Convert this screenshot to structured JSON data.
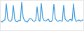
{
  "chart_data": {
    "type": "line",
    "x": [
      0,
      1,
      2,
      3,
      4,
      5,
      6,
      7,
      8,
      9,
      10,
      11,
      12,
      13,
      14,
      15,
      16,
      17,
      18,
      19,
      20,
      21,
      22,
      23,
      24,
      25,
      26,
      27,
      28,
      29,
      30,
      31,
      32,
      33,
      34,
      35,
      36,
      37,
      38,
      39,
      40,
      41,
      42,
      43,
      44,
      45,
      46,
      47,
      48,
      49,
      50,
      51,
      52,
      53,
      54,
      55,
      56,
      57,
      58,
      59
    ],
    "values": [
      30,
      28,
      33,
      35,
      90,
      40,
      32,
      30,
      36,
      85,
      38,
      30,
      29,
      34,
      32,
      95,
      45,
      33,
      30,
      28,
      35,
      40,
      38,
      32,
      30,
      34,
      80,
      36,
      30,
      92,
      42,
      33,
      31,
      35,
      38,
      30,
      29,
      36,
      88,
      40,
      33,
      30,
      34,
      32,
      31,
      86,
      38,
      33,
      30,
      35,
      37,
      32,
      90,
      40,
      30,
      33,
      35,
      31,
      34,
      36
    ],
    "color": "#3b9ad9",
    "xlim": [
      0,
      59
    ],
    "ylim": [
      0,
      100
    ],
    "xticks": [],
    "yticks": [],
    "grid": false,
    "tick_labels": false
  }
}
